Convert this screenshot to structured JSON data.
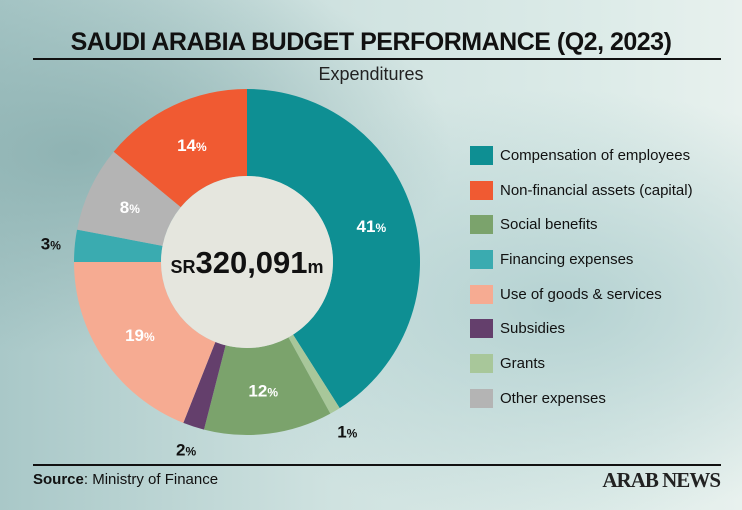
{
  "header": {
    "title": "SAUDI ARABIA BUDGET PERFORMANCE (Q2, 2023)",
    "subtitle": "Expenditures"
  },
  "chart_data": {
    "type": "pie",
    "donut": true,
    "title": "SAUDI ARABIA BUDGET PERFORMANCE (Q2, 2023)",
    "subtitle": "Expenditures",
    "center_label": {
      "prefix": "SR",
      "value": "320,091",
      "suffix": "m"
    },
    "slices": [
      {
        "name": "Compensation of employees",
        "value": 41,
        "label": "41",
        "color": "#0e8f93"
      },
      {
        "name": "Grants",
        "value": 1,
        "label": "1",
        "color": "#a8c79a"
      },
      {
        "name": "Social benefits",
        "value": 12,
        "label": "12",
        "color": "#7ba36c"
      },
      {
        "name": "Subsidies",
        "value": 2,
        "label": "2",
        "color": "#643f6c"
      },
      {
        "name": "Use of goods & services",
        "value": 19,
        "label": "19",
        "color": "#f6ab92"
      },
      {
        "name": "Financing expenses",
        "value": 3,
        "label": "3",
        "color": "#3aabb0"
      },
      {
        "name": "Other expenses",
        "value": 8,
        "label": "8",
        "color": "#b4b4b4"
      },
      {
        "name": "Non-financial assets (capital)",
        "value": 14,
        "label": "14",
        "color": "#f05a32"
      }
    ],
    "legend": {
      "placement": "right",
      "order": [
        "Compensation of employees",
        "Non-financial assets (capital)",
        "Social benefits",
        "Financing expenses",
        "Use of goods & services",
        "Subsidies",
        "Grants",
        "Other expenses"
      ]
    },
    "unit_suffix": "%"
  },
  "footer": {
    "source_label": "Source",
    "source_text": ": Ministry of Finance",
    "logo": "ARAB NEWS"
  }
}
